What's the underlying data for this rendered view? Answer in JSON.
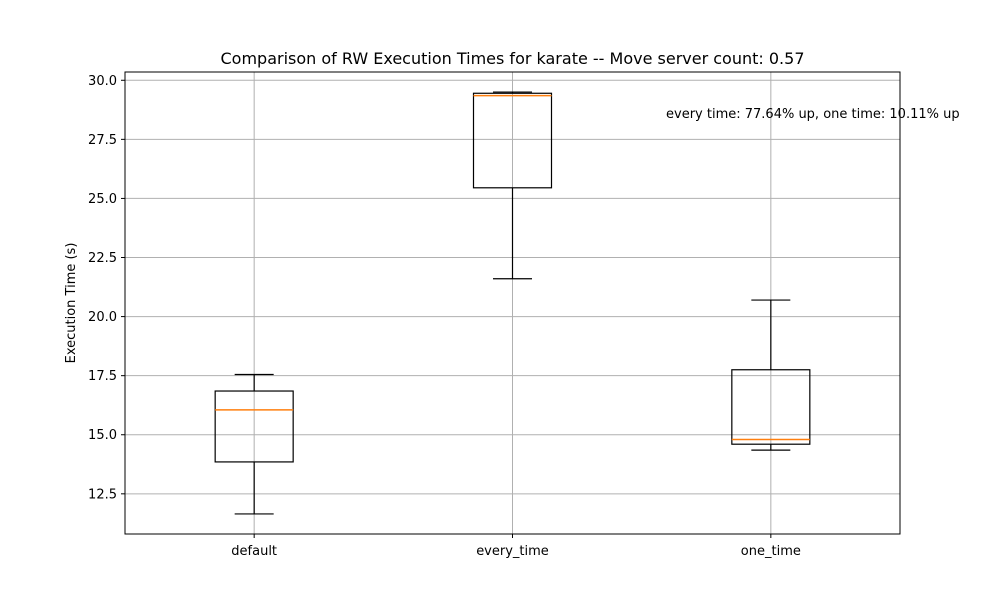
{
  "chart_data": {
    "type": "boxplot",
    "title": "Comparison of RW Execution Times for karate -- Move server count: 0.57",
    "xlabel": "",
    "ylabel": "Execution Time (s)",
    "ylim": [
      10.8,
      30.35
    ],
    "yticks": [
      12.5,
      15.0,
      17.5,
      20.0,
      22.5,
      25.0,
      27.5,
      30.0
    ],
    "ytick_labels": [
      "12.5",
      "15.0",
      "17.5",
      "20.0",
      "22.5",
      "25.0",
      "27.5",
      "30.0"
    ],
    "grid": true,
    "categories": [
      "default",
      "every_time",
      "one_time"
    ],
    "boxes": [
      {
        "category": "default",
        "whisker_low": 11.65,
        "q1": 13.85,
        "median": 16.05,
        "q3": 16.85,
        "whisker_high": 17.55
      },
      {
        "category": "every_time",
        "whisker_low": 21.6,
        "q1": 25.45,
        "median": 29.35,
        "q3": 29.45,
        "whisker_high": 29.5
      },
      {
        "category": "one_time",
        "whisker_low": 14.35,
        "q1": 14.6,
        "median": 14.8,
        "q3": 17.75,
        "whisker_high": 20.7
      }
    ],
    "annotation": "every time: 77.64% up, one time: 10.11% up",
    "colors": {
      "box": "#000000",
      "median": "#ff7f0e",
      "grid": "#b0b0b0"
    }
  }
}
